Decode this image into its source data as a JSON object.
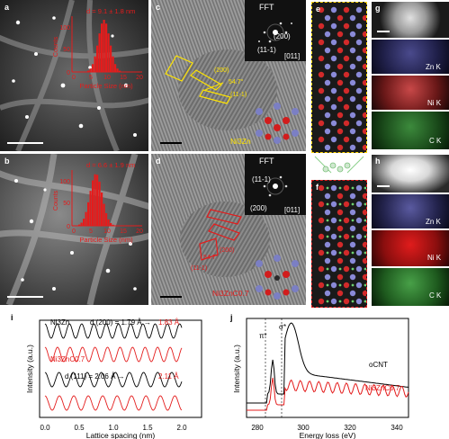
{
  "panels": {
    "a": {
      "label": "a",
      "annotation": "d = 9.1 ± 1.8 nm",
      "xlabel": "Particle Size (nm)",
      "ylabel": "Counts",
      "xticks": [
        "0",
        "5",
        "10",
        "15",
        "20"
      ],
      "yticks": [
        "0",
        "50",
        "100"
      ]
    },
    "b": {
      "label": "b",
      "annotation": "d = 6.6 ± 1.9 nm",
      "xlabel": "Particle Size (nm)",
      "ylabel": "Counts",
      "xticks": [
        "0",
        "5",
        "10",
        "15",
        "20"
      ],
      "yticks": [
        "0",
        "50",
        "100"
      ]
    },
    "c": {
      "label": "c",
      "fft": "FFT",
      "spot1": "(200)",
      "spot2": "(11-1)",
      "zone": "[011]",
      "plane1": "(200)",
      "angle": "54.7°",
      "plane2": "(11-1)",
      "phase": "Ni3Zn"
    },
    "d": {
      "label": "d",
      "fft": "FFT",
      "spot1": "(11-1)",
      "spot2": "(200)",
      "zone": "[011]",
      "plane1": "(200)",
      "angle": "54.7°",
      "plane2": "(11-1)",
      "phase": "Ni3ZnC0.7"
    },
    "e": {
      "label": "e"
    },
    "f": {
      "label": "f"
    },
    "g": {
      "label": "g",
      "maps": [
        "Zn K",
        "Ni K",
        "C K"
      ]
    },
    "h": {
      "label": "h",
      "maps": [
        "Zn K",
        "Ni K",
        "C K"
      ]
    },
    "i": {
      "label": "i",
      "ylabel": "Intensity (a.u.)",
      "xlabel": "Lattice spacing (nm)",
      "xticks": [
        "0.0",
        "0.5",
        "1.0",
        "1.5",
        "2.0"
      ],
      "row1_phase": "Ni3Zn",
      "row1_text": "d (200) = 1.79 Å →",
      "row1_value": "1.83 Å",
      "row2_phase": "Ni3ZnC0.7",
      "row3_text": "d (111) = 2.06 Å →",
      "row3_value": "2.11 Å"
    },
    "j": {
      "label": "j",
      "ylabel": "Intensity (a.u.)",
      "xlabel": "Energy loss (eV)",
      "xticks": [
        "280",
        "300",
        "320",
        "340"
      ],
      "pi": "π*",
      "sigma": "σ*",
      "series1": "oCNT",
      "series2": "Ni3ZnC0.7"
    }
  },
  "colors": {
    "red": "#e41c1c",
    "yellow": "#ffe400",
    "black": "#000000"
  }
}
